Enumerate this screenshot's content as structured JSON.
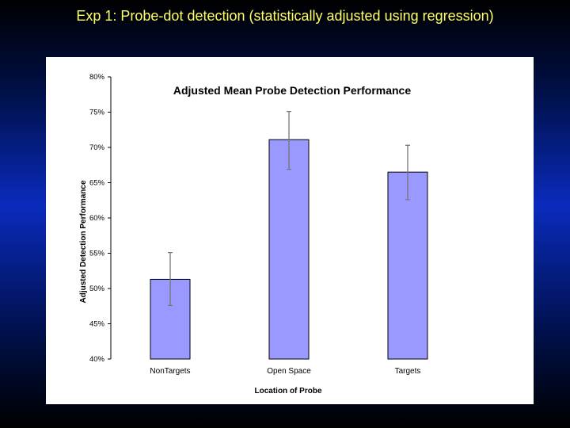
{
  "slide": {
    "title": "Exp 1: Probe-dot detection (statistically adjusted using regression)"
  },
  "colors": {
    "bar_fill": "#9999ff",
    "bar_stroke": "#000000",
    "error_bar": "#777777",
    "title_text": "#ffff66"
  },
  "chart_data": {
    "type": "bar",
    "title": "Adjusted Mean Probe Detection Performance",
    "xlabel": "Location of Probe",
    "ylabel": "Adjusted Detection Performance",
    "categories": [
      "NonTargets",
      "Open Space",
      "Targets"
    ],
    "values": [
      51.3,
      71.1,
      66.5
    ],
    "error_low": [
      47.6,
      66.9,
      62.6
    ],
    "error_high": [
      55.1,
      75.1,
      70.3
    ],
    "ylim": [
      40,
      80
    ],
    "yticks": [
      40,
      45,
      50,
      55,
      60,
      65,
      70,
      75,
      80
    ],
    "ytick_labels": [
      "40%",
      "45%",
      "50%",
      "55%",
      "60%",
      "65%",
      "70%",
      "75%",
      "80%"
    ],
    "grid": false,
    "legend": "none"
  }
}
